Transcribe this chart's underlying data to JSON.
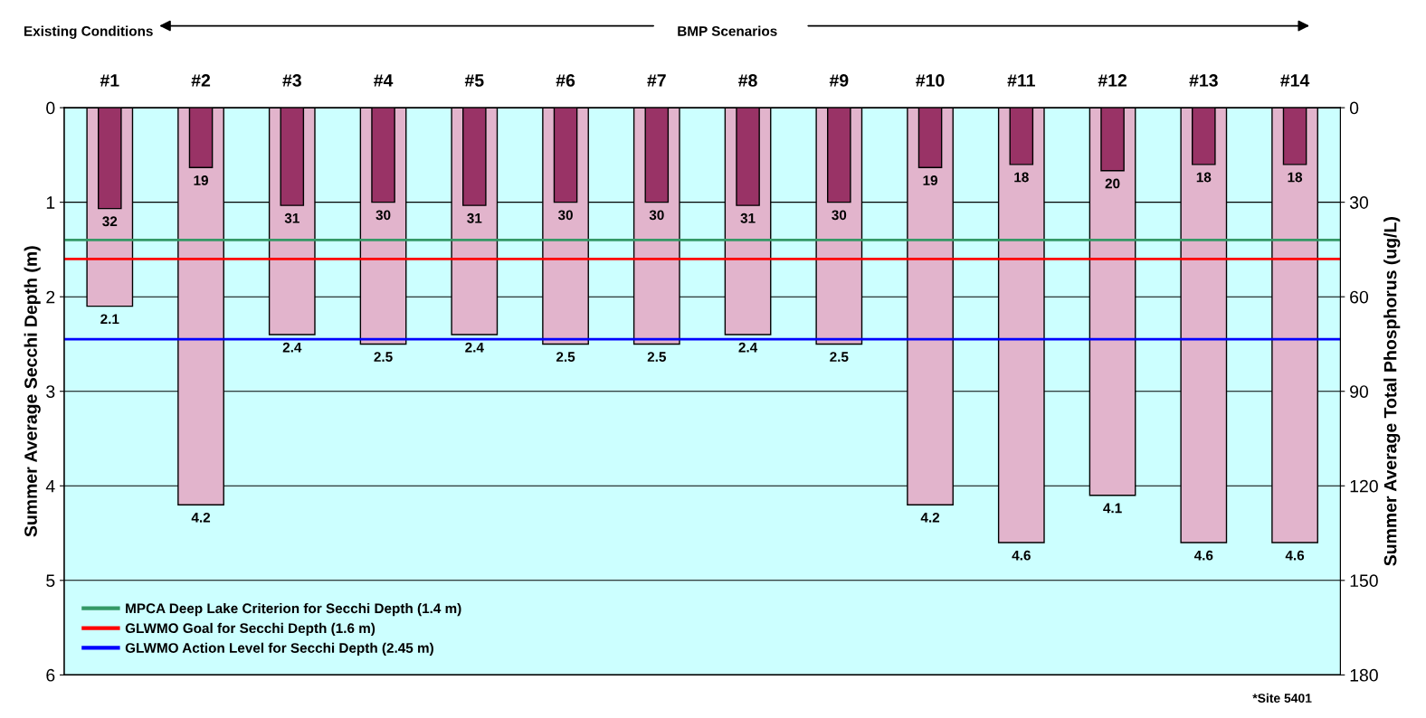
{
  "chart_data": {
    "type": "bar",
    "ylabel": "Summer Average Secchi Depth (m)",
    "y2label": "Summer Average Total Phosphorus (ug/L)",
    "categories": [
      "#1",
      "#2",
      "#3",
      "#4",
      "#5",
      "#6",
      "#7",
      "#8",
      "#9",
      "#10",
      "#11",
      "#12",
      "#13",
      "#14"
    ],
    "series": [
      {
        "color": "#e2b4cc",
        "values": [
          2.1,
          4.2,
          2.4,
          2.5,
          2.4,
          2.5,
          2.5,
          2.4,
          2.5,
          4.2,
          4.6,
          4.1,
          4.6,
          4.6
        ]
      },
      {
        "color": "#993366",
        "axis": "y2",
        "values": [
          32,
          19,
          31,
          30,
          31,
          30,
          30,
          31,
          30,
          19,
          18,
          20,
          18,
          18
        ]
      }
    ],
    "data_labels": true,
    "ylim": [
      6,
      0
    ],
    "yticks": [
      0,
      1,
      2,
      3,
      4,
      5,
      6
    ],
    "y2lim": [
      180,
      0
    ],
    "y2ticks": [
      0,
      30,
      60,
      90,
      120,
      150,
      180
    ],
    "grid": "y",
    "ref_lines": [
      {
        "axis": "y",
        "value": 1.4,
        "label": "MPCA Deep Lake Criterion for Secchi Depth (1.4 m)",
        "color": "#339966"
      },
      {
        "axis": "y",
        "value": 1.6,
        "label": "GLWMO Goal for Secchi Depth (1.6 m)",
        "color": "#ff0000"
      },
      {
        "axis": "y",
        "value": 2.45,
        "label": "GLWMO Action Level for Secchi Depth (2.45 m)",
        "color": "#0000ff"
      }
    ],
    "legend": "bottom left",
    "annotations": [
      "Existing Conditions",
      "BMP Scenarios",
      "*Site 5401"
    ]
  }
}
